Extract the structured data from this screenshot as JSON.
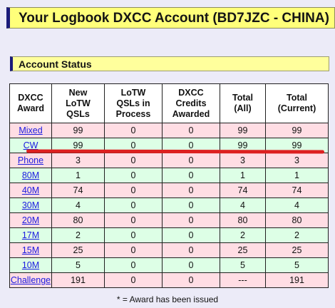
{
  "header": {
    "title": "Your Logbook DXCC Account (BD7JZC - CHINA)"
  },
  "section": {
    "title": "Account Status"
  },
  "table": {
    "columns": [
      "DXCC Award",
      "New LoTW QSLs",
      "LoTW QSLs in Process",
      "DXCC Credits Awarded",
      "Total (All)",
      "Total (Current)"
    ],
    "rows": [
      {
        "award": "Mixed",
        "new": "99",
        "process": "0",
        "credits": "0",
        "total_all": "99",
        "total_current": "99"
      },
      {
        "award": "CW",
        "new": "99",
        "process": "0",
        "credits": "0",
        "total_all": "99",
        "total_current": "99"
      },
      {
        "award": "Phone",
        "new": "3",
        "process": "0",
        "credits": "0",
        "total_all": "3",
        "total_current": "3"
      },
      {
        "award": "80M",
        "new": "1",
        "process": "0",
        "credits": "0",
        "total_all": "1",
        "total_current": "1"
      },
      {
        "award": "40M",
        "new": "74",
        "process": "0",
        "credits": "0",
        "total_all": "74",
        "total_current": "74"
      },
      {
        "award": "30M",
        "new": "4",
        "process": "0",
        "credits": "0",
        "total_all": "4",
        "total_current": "4"
      },
      {
        "award": "20M",
        "new": "80",
        "process": "0",
        "credits": "0",
        "total_all": "80",
        "total_current": "80"
      },
      {
        "award": "17M",
        "new": "2",
        "process": "0",
        "credits": "0",
        "total_all": "2",
        "total_current": "2"
      },
      {
        "award": "15M",
        "new": "25",
        "process": "0",
        "credits": "0",
        "total_all": "25",
        "total_current": "25"
      },
      {
        "award": "10M",
        "new": "5",
        "process": "0",
        "credits": "0",
        "total_all": "5",
        "total_current": "5"
      },
      {
        "award": "Challenge",
        "new": "191",
        "process": "0",
        "credits": "0",
        "total_all": "---",
        "total_current": "191"
      }
    ]
  },
  "footnote": "* = Award has been issued",
  "colors": {
    "pink_row": "#ffdde4",
    "green_row": "#ddffe6",
    "title_bg": "#ffff7a",
    "annotation": "#dd2020"
  }
}
